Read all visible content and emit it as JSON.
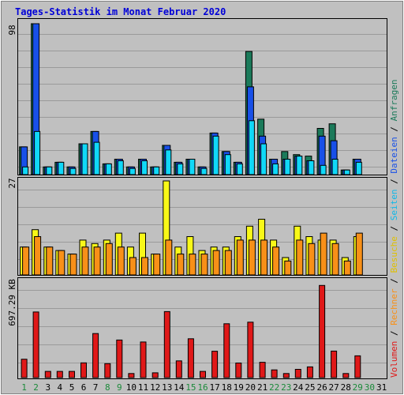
{
  "title": "Tages-Statistik im Monat Februar 2020",
  "colors": {
    "background": "#c0c0c0",
    "title": "#0000d8",
    "anfragen": "#1b7a5a",
    "dateien": "#1850e8",
    "seiten": "#10d8f8",
    "besuche": "#f8f818",
    "rechner": "#f89018",
    "volumen": "#e01818",
    "weekend_label": "#1b8a3a",
    "weekday_label": "#000000"
  },
  "right_label": {
    "volumen": "Volumen",
    "rechner": "Rechner",
    "besuche": "Besuche",
    "seiten": "Seiten",
    "dateien": "Dateien",
    "anfragen": "Anfragen",
    "sep": " / "
  },
  "chart_data": [
    {
      "type": "bar",
      "panel": "top",
      "axis_label": "98",
      "ylim": [
        0,
        98
      ],
      "x": [
        1,
        2,
        3,
        4,
        5,
        6,
        7,
        8,
        9,
        10,
        11,
        12,
        13,
        14,
        15,
        16,
        17,
        18,
        19,
        20,
        21,
        22,
        23,
        24,
        25,
        26,
        27,
        28,
        29
      ],
      "series": [
        {
          "name": "Anfragen",
          "values": [
            18,
            98,
            5,
            8,
            5,
            20,
            28,
            7,
            10,
            5,
            10,
            5,
            19,
            8,
            10,
            5,
            27,
            15,
            8,
            80,
            36,
            10,
            15,
            13,
            12,
            30,
            33,
            3,
            10
          ]
        },
        {
          "name": "Dateien",
          "values": [
            18,
            98,
            5,
            8,
            5,
            20,
            28,
            7,
            10,
            5,
            10,
            5,
            19,
            8,
            10,
            5,
            27,
            15,
            8,
            57,
            25,
            10,
            10,
            12,
            9,
            25,
            22,
            3,
            10
          ]
        },
        {
          "name": "Seiten",
          "values": [
            5,
            28,
            5,
            8,
            4,
            20,
            21,
            7,
            9,
            4,
            9,
            5,
            16,
            7,
            10,
            4,
            25,
            13,
            7,
            35,
            20,
            7,
            10,
            12,
            9,
            6,
            10,
            3,
            8
          ]
        }
      ]
    },
    {
      "type": "bar",
      "panel": "middle",
      "axis_label": "27",
      "ylim": [
        0,
        27
      ],
      "x": [
        1,
        2,
        3,
        4,
        5,
        6,
        7,
        8,
        9,
        10,
        11,
        12,
        13,
        14,
        15,
        16,
        17,
        18,
        19,
        20,
        21,
        22,
        23,
        24,
        25,
        26,
        27,
        28,
        29
      ],
      "series": [
        {
          "name": "Besuche",
          "values": [
            8,
            13,
            8,
            7,
            6,
            10,
            9,
            10,
            12,
            8,
            12,
            6,
            27,
            8,
            11,
            7,
            8,
            8,
            11,
            14,
            16,
            10,
            5,
            14,
            11,
            10,
            10,
            5,
            11
          ]
        },
        {
          "name": "Rechner",
          "values": [
            8,
            11,
            8,
            7,
            6,
            8,
            8,
            9,
            8,
            5,
            5,
            6,
            10,
            6,
            6,
            6,
            7,
            7,
            10,
            10,
            10,
            8,
            4,
            10,
            9,
            12,
            9,
            4,
            12
          ]
        }
      ]
    },
    {
      "type": "bar",
      "panel": "bottom",
      "axis_label": "697.29 KB",
      "ylim": [
        0,
        697.29
      ],
      "x": [
        1,
        2,
        3,
        4,
        5,
        6,
        7,
        8,
        9,
        10,
        11,
        12,
        13,
        14,
        15,
        16,
        17,
        18,
        19,
        20,
        21,
        22,
        23,
        24,
        25,
        26,
        27,
        28,
        29
      ],
      "series": [
        {
          "name": "Volumen",
          "values": [
            133,
            475,
            45,
            45,
            45,
            107,
            319,
            101,
            272,
            30,
            258,
            35,
            478,
            121,
            281,
            45,
            191,
            390,
            106,
            401,
            111,
            56,
            30,
            60,
            78,
            667,
            192,
            30,
            158
          ]
        }
      ]
    }
  ],
  "day_labels": [
    {
      "text": "1",
      "weekend": true
    },
    {
      "text": "2",
      "weekend": true
    },
    {
      "text": "3",
      "weekend": false
    },
    {
      "text": "4",
      "weekend": false
    },
    {
      "text": "5",
      "weekend": false
    },
    {
      "text": "6",
      "weekend": false
    },
    {
      "text": "7",
      "weekend": false
    },
    {
      "text": "8",
      "weekend": true
    },
    {
      "text": "9",
      "weekend": true
    },
    {
      "text": "10",
      "weekend": false
    },
    {
      "text": "11",
      "weekend": false
    },
    {
      "text": "12",
      "weekend": false
    },
    {
      "text": "13",
      "weekend": false
    },
    {
      "text": "14",
      "weekend": false
    },
    {
      "text": "15",
      "weekend": true
    },
    {
      "text": "16",
      "weekend": true
    },
    {
      "text": "17",
      "weekend": false
    },
    {
      "text": "18",
      "weekend": false
    },
    {
      "text": "19",
      "weekend": false
    },
    {
      "text": "20",
      "weekend": false
    },
    {
      "text": "21",
      "weekend": false
    },
    {
      "text": "22",
      "weekend": true
    },
    {
      "text": "23",
      "weekend": true
    },
    {
      "text": "24",
      "weekend": false
    },
    {
      "text": "25",
      "weekend": false
    },
    {
      "text": "26",
      "weekend": false
    },
    {
      "text": "27",
      "weekend": false
    },
    {
      "text": "28",
      "weekend": false
    },
    {
      "text": "29",
      "weekend": true
    },
    {
      "text": "30",
      "weekend": true
    },
    {
      "text": "31",
      "weekend": false
    }
  ]
}
